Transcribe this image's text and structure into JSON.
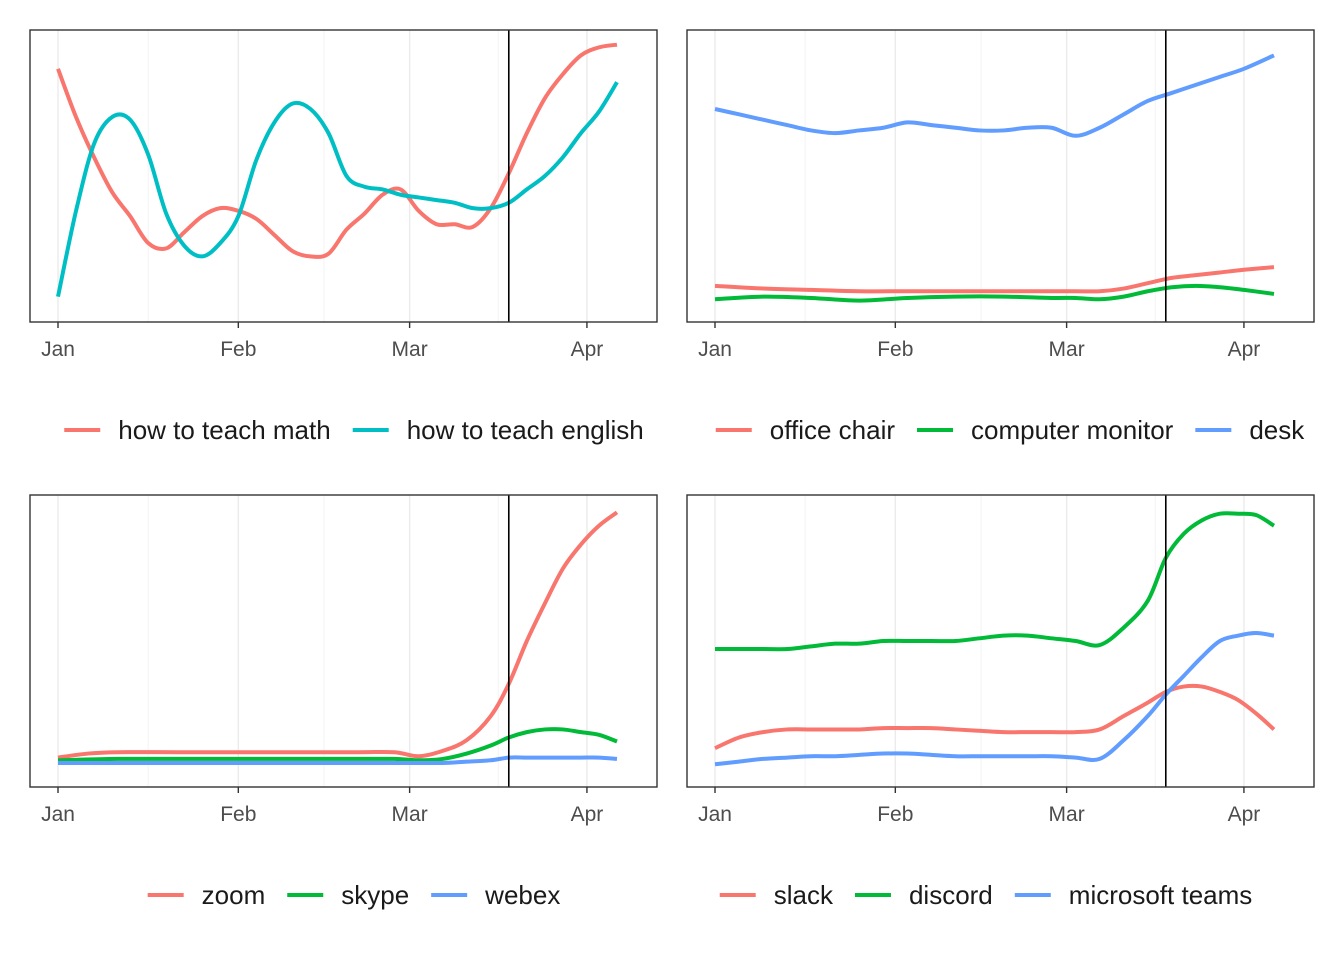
{
  "chart_data": [
    {
      "type": "line",
      "x_ticks": [
        "Jan",
        "Feb",
        "Mar",
        "Apr"
      ],
      "grid": true,
      "y_axis_labels": false,
      "xlim": [
        0,
        95
      ],
      "ylim": [
        0,
        100
      ],
      "vline_x": 75,
      "legend_position": "bottom",
      "series": [
        {
          "name": "how to teach math",
          "color": "#F8766D",
          "x": [
            0,
            3,
            6,
            9,
            12,
            15,
            18,
            21,
            24,
            27,
            30,
            33,
            36,
            39,
            42,
            45,
            48,
            51,
            54,
            57,
            60,
            63,
            66,
            69,
            72,
            75,
            78,
            81,
            84,
            87,
            90,
            93
          ],
          "y": [
            90,
            72,
            57,
            44,
            35,
            25,
            23,
            29,
            35,
            38,
            37,
            34,
            28,
            22,
            20,
            21,
            30,
            36,
            43,
            45,
            37,
            32,
            32,
            31,
            38,
            51,
            66,
            79,
            88,
            95,
            98,
            99
          ]
        },
        {
          "name": "how to teach english",
          "color": "#00BFC4",
          "x": [
            0,
            3,
            6,
            9,
            12,
            15,
            18,
            21,
            24,
            27,
            30,
            33,
            36,
            39,
            42,
            45,
            48,
            51,
            54,
            57,
            60,
            63,
            66,
            69,
            72,
            75,
            78,
            81,
            84,
            87,
            90,
            93
          ],
          "y": [
            5,
            37,
            62,
            72,
            71,
            58,
            36,
            24,
            20,
            25,
            35,
            56,
            70,
            77,
            75,
            66,
            50,
            46,
            45,
            43,
            42,
            41,
            40,
            38,
            38,
            40,
            45,
            50,
            57,
            66,
            74,
            85
          ]
        }
      ]
    },
    {
      "type": "line",
      "x_ticks": [
        "Jan",
        "Feb",
        "Mar",
        "Apr"
      ],
      "grid": true,
      "y_axis_labels": false,
      "xlim": [
        0,
        95
      ],
      "ylim": [
        0,
        100
      ],
      "vline_x": 75,
      "legend_position": "bottom",
      "series": [
        {
          "name": "office chair",
          "color": "#F8766D",
          "x": [
            0,
            8,
            16,
            24,
            32,
            40,
            48,
            56,
            60,
            64,
            68,
            72,
            76,
            80,
            84,
            88,
            93
          ],
          "y": [
            9,
            8,
            7.5,
            7,
            7,
            7,
            7,
            7,
            7,
            7,
            8,
            10,
            12,
            13,
            14,
            15,
            16
          ]
        },
        {
          "name": "computer monitor",
          "color": "#00BA38",
          "x": [
            0,
            8,
            16,
            24,
            32,
            40,
            48,
            56,
            60,
            64,
            68,
            72,
            76,
            80,
            84,
            88,
            93
          ],
          "y": [
            4,
            5,
            4.5,
            3.5,
            4.5,
            5,
            5,
            4.5,
            4.5,
            4,
            5,
            7,
            8.5,
            9,
            8.5,
            7.5,
            6
          ]
        },
        {
          "name": "desk",
          "color": "#619CFF",
          "x": [
            0,
            4,
            8,
            12,
            16,
            20,
            24,
            28,
            32,
            36,
            40,
            44,
            48,
            52,
            56,
            60,
            64,
            68,
            72,
            76,
            80,
            84,
            88,
            93
          ],
          "y": [
            75,
            73,
            71,
            69,
            67,
            66,
            67,
            68,
            70,
            69,
            68,
            67,
            67,
            68,
            68,
            65,
            68,
            73,
            78,
            81,
            84,
            87,
            90,
            95
          ]
        }
      ]
    },
    {
      "type": "line",
      "x_ticks": [
        "Jan",
        "Feb",
        "Mar",
        "Apr"
      ],
      "grid": true,
      "y_axis_labels": false,
      "xlim": [
        0,
        95
      ],
      "ylim": [
        0,
        100
      ],
      "vline_x": 75,
      "legend_position": "bottom",
      "series": [
        {
          "name": "zoom",
          "color": "#F8766D",
          "x": [
            0,
            5,
            10,
            20,
            30,
            40,
            50,
            56,
            60,
            64,
            68,
            72,
            75,
            78,
            81,
            84,
            87,
            90,
            93
          ],
          "y": [
            6.5,
            8,
            8.5,
            8.5,
            8.5,
            8.5,
            8.5,
            8.5,
            7,
            9,
            13,
            22,
            34,
            50,
            64,
            77,
            86,
            93,
            98
          ]
        },
        {
          "name": "skype",
          "color": "#00BA38",
          "x": [
            0,
            10,
            20,
            30,
            40,
            50,
            56,
            60,
            64,
            68,
            72,
            75,
            78,
            81,
            84,
            87,
            90,
            93
          ],
          "y": [
            5.5,
            6,
            6,
            6,
            6,
            6,
            6,
            5.5,
            6,
            8,
            11,
            14,
            16,
            17,
            17,
            16,
            15,
            12.5
          ]
        },
        {
          "name": "webex",
          "color": "#619CFF",
          "x": [
            0,
            10,
            20,
            30,
            40,
            50,
            60,
            64,
            68,
            72,
            75,
            78,
            81,
            84,
            87,
            90,
            93
          ],
          "y": [
            4.5,
            4.5,
            4.5,
            4.5,
            4.5,
            4.5,
            4.5,
            4.5,
            5,
            5.5,
            6.5,
            6.5,
            6.5,
            6.5,
            6.5,
            6.5,
            6
          ]
        }
      ]
    },
    {
      "type": "line",
      "x_ticks": [
        "Jan",
        "Feb",
        "Mar",
        "Apr"
      ],
      "grid": true,
      "y_axis_labels": false,
      "xlim": [
        0,
        95
      ],
      "ylim": [
        0,
        100
      ],
      "vline_x": 75,
      "legend_position": "bottom",
      "series": [
        {
          "name": "slack",
          "color": "#F8766D",
          "x": [
            0,
            4,
            8,
            12,
            16,
            20,
            24,
            28,
            32,
            36,
            40,
            44,
            48,
            52,
            56,
            60,
            64,
            68,
            72,
            75,
            78,
            81,
            84,
            87,
            90,
            93
          ],
          "y": [
            10,
            14,
            16,
            17,
            17,
            17,
            17,
            17.5,
            17.5,
            17.5,
            17,
            16.5,
            16,
            16,
            16,
            16,
            17,
            22,
            27,
            31,
            33,
            33,
            31,
            28,
            23,
            17
          ]
        },
        {
          "name": "discord",
          "color": "#00BA38",
          "x": [
            0,
            4,
            8,
            12,
            16,
            20,
            24,
            28,
            32,
            36,
            40,
            44,
            48,
            52,
            56,
            60,
            64,
            68,
            72,
            75,
            78,
            81,
            84,
            87,
            90,
            93
          ],
          "y": [
            47,
            47,
            47,
            47,
            48,
            49,
            49,
            50,
            50,
            50,
            50,
            51,
            52,
            52,
            51,
            50,
            48.5,
            55,
            65,
            81,
            90,
            95,
            97.5,
            97.5,
            97,
            93
          ]
        },
        {
          "name": "microsoft teams",
          "color": "#619CFF",
          "x": [
            0,
            4,
            8,
            12,
            16,
            20,
            24,
            28,
            32,
            36,
            40,
            44,
            48,
            52,
            56,
            60,
            64,
            68,
            72,
            75,
            78,
            81,
            84,
            87,
            90,
            93
          ],
          "y": [
            4,
            5,
            6,
            6.5,
            7,
            7,
            7.5,
            8,
            8,
            7.5,
            7,
            7,
            7,
            7,
            7,
            6.5,
            6,
            13,
            22,
            30,
            37,
            44,
            50,
            52,
            53,
            52
          ]
        }
      ]
    }
  ]
}
